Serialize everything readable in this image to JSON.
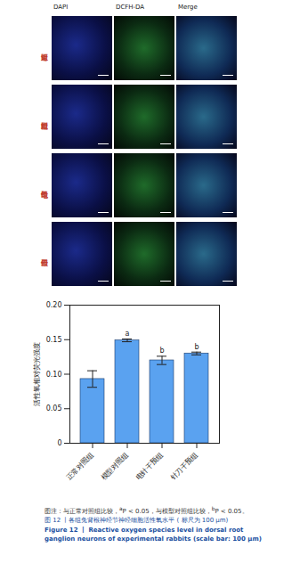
{
  "panels": {
    "columns": [
      "DAPI",
      "DCFH-DA",
      "Merge"
    ],
    "rows": [
      "正常对照组",
      "模型对照组",
      "电针干预组",
      "针刀干预组"
    ]
  },
  "chart_data": {
    "type": "bar",
    "y_label": "活性氧相对荧光强度",
    "categories": [
      "正常对照组",
      "模型对照组",
      "电针干预组",
      "针刀干预组"
    ],
    "values": [
      0.093,
      0.149,
      0.12,
      0.13
    ],
    "errors": [
      0.012,
      0.002,
      0.006,
      0.002
    ],
    "significance": [
      null,
      "a",
      "b",
      "b"
    ],
    "color": "#5aa2f0",
    "ylim": [
      0,
      0.2
    ],
    "yticks": [
      0,
      0.05,
      {
        "value": 0.1,
        "label": "0.10"
      },
      0.15,
      {
        "value": 0.2,
        "label": "0.20"
      }
    ],
    "grid": false
  },
  "caption": {
    "note": [
      {
        "text": "图注：与正常对照组比较，"
      },
      {
        "sup": "a"
      },
      {
        "text": "P < 0.05，与模型对照组比较，"
      },
      {
        "sup": "b"
      },
      {
        "text": "P < 0.05。"
      }
    ],
    "title_zh": "图 12 丨各组兔背根神经节神经细胞活性氧水平 ( 标尺为 100 μm)",
    "title_en": "Figure 12 丨 Reactive oxygen species level in dorsal root ganglion neurons of experimental rabbits (scale bar: 100 μm)"
  }
}
